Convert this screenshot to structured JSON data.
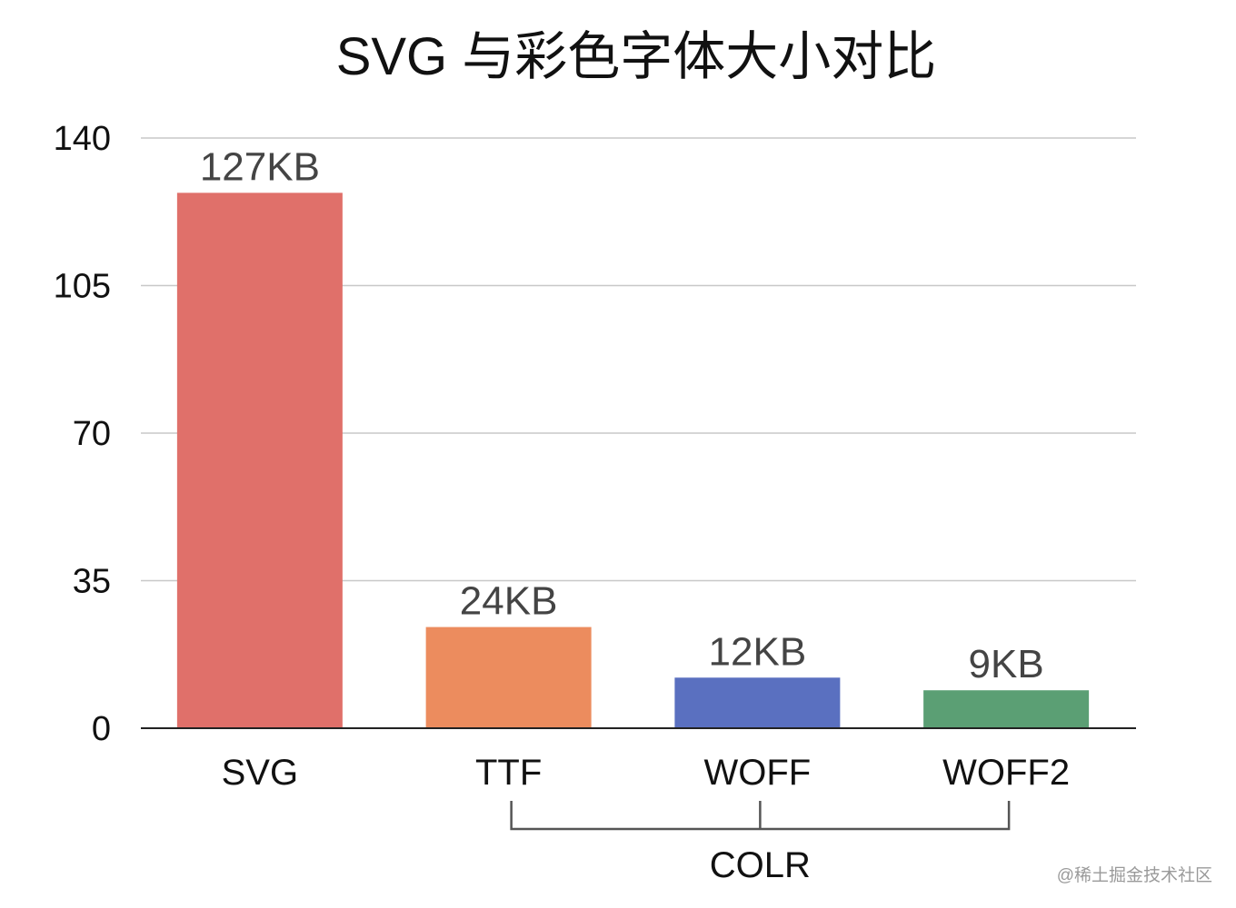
{
  "chart_data": {
    "type": "bar",
    "title": "SVG 与彩色字体大小对比",
    "categories": [
      "SVG",
      "TTF",
      "WOFF",
      "WOFF2"
    ],
    "values": [
      127,
      24,
      12,
      9
    ],
    "data_labels": [
      "127KB",
      "24KB",
      "12KB",
      "9KB"
    ],
    "colors": [
      "#e0706a",
      "#ec8c5e",
      "#5a70c0",
      "#5b9f74"
    ],
    "yticks": [
      0,
      35,
      70,
      105,
      140
    ],
    "ylim": [
      0,
      140
    ],
    "grid": true,
    "xlabel": "",
    "ylabel": "",
    "group_bracket": {
      "label": "COLR",
      "categories": [
        "TTF",
        "WOFF",
        "WOFF2"
      ]
    }
  },
  "watermark": "@稀土掘金技术社区"
}
